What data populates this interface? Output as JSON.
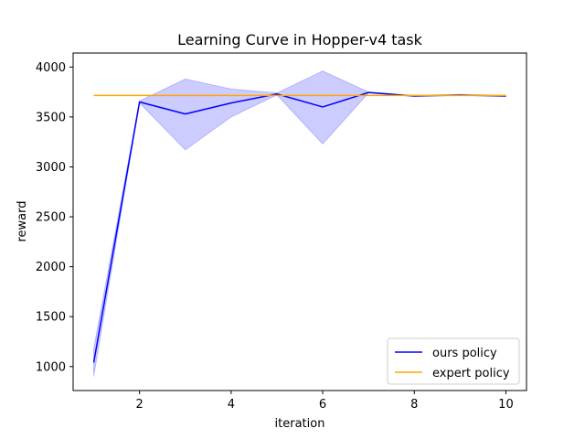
{
  "chart_data": {
    "type": "line",
    "title": "Learning Curve in Hopper-v4 task",
    "xlabel": "iteration",
    "ylabel": "reward",
    "xlim": [
      0.55,
      10.45
    ],
    "ylim": [
      760,
      4140
    ],
    "xticks": [
      2,
      4,
      6,
      8,
      10
    ],
    "yticks": [
      1000,
      1500,
      2000,
      2500,
      3000,
      3500,
      4000
    ],
    "grid": false,
    "legend_position": "lower-right",
    "x": [
      1,
      2,
      3,
      4,
      5,
      6,
      7,
      8,
      9,
      10
    ],
    "series": [
      {
        "name": "ours policy",
        "color": "#0000ff",
        "values": [
          1040,
          3650,
          3530,
          3640,
          3730,
          3600,
          3745,
          3710,
          3720,
          3710
        ],
        "band_lower": [
          900,
          3640,
          3170,
          3500,
          3720,
          3230,
          3740,
          3705,
          3715,
          3705
        ],
        "band_upper": [
          1180,
          3660,
          3880,
          3780,
          3740,
          3960,
          3750,
          3715,
          3725,
          3715
        ],
        "band_color": "#0000ff"
      },
      {
        "name": "expert policy",
        "color": "#ffa500",
        "values": [
          3715,
          3715,
          3715,
          3715,
          3715,
          3715,
          3715,
          3715,
          3715,
          3715
        ]
      }
    ]
  }
}
